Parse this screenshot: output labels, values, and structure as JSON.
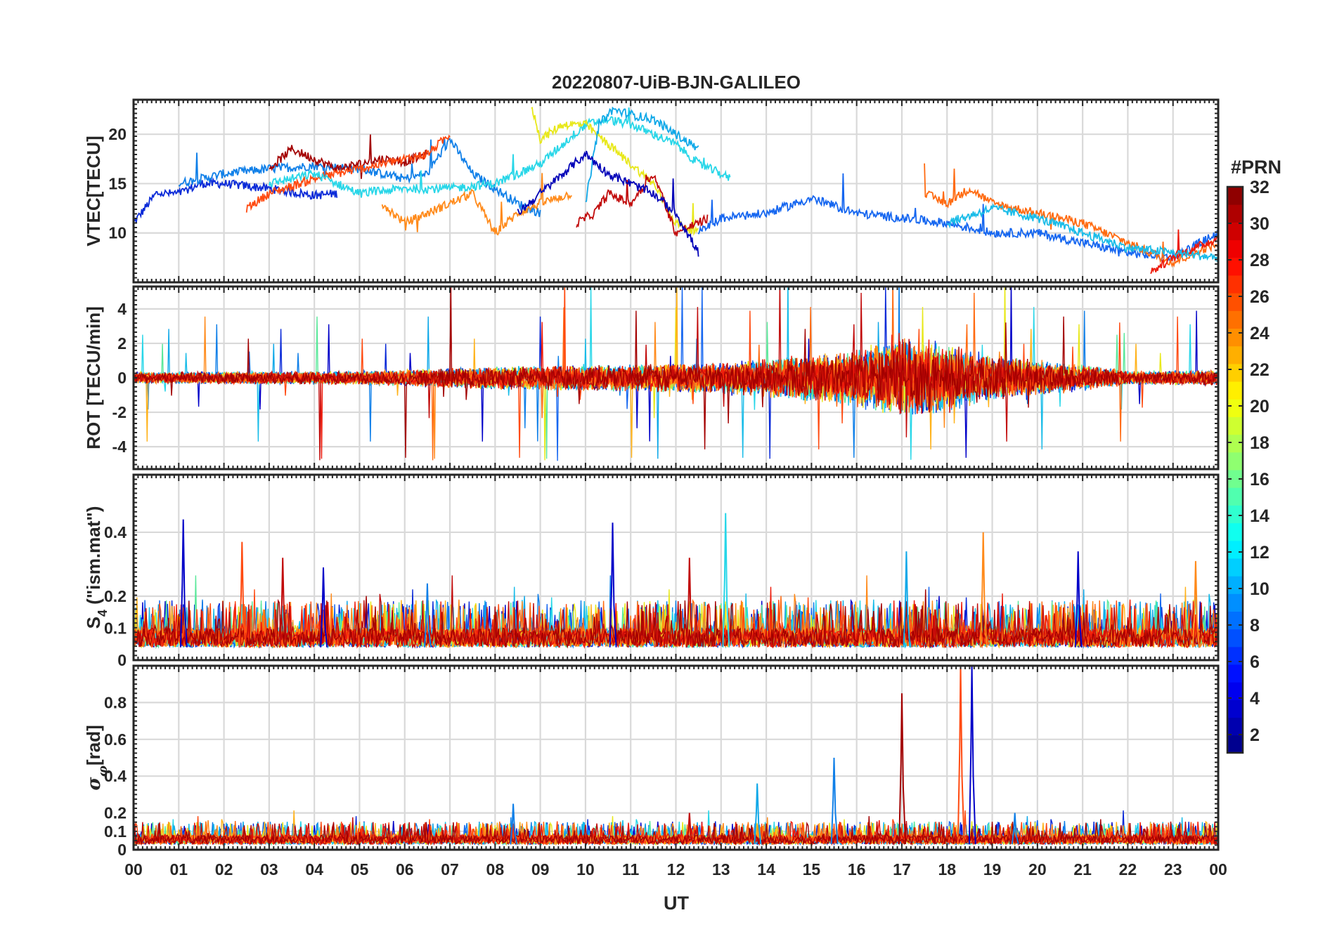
{
  "chart_data": {
    "type": "line",
    "title": "20220807-UiB-BJN-GALILEO",
    "xlabel": "UT",
    "x_ticks": [
      "00",
      "01",
      "02",
      "03",
      "04",
      "05",
      "06",
      "07",
      "08",
      "09",
      "10",
      "11",
      "12",
      "13",
      "14",
      "15",
      "16",
      "17",
      "18",
      "19",
      "20",
      "21",
      "22",
      "23",
      "00"
    ],
    "xlim_hours": [
      0,
      24
    ],
    "grid": true,
    "panels": [
      {
        "id": "vtec",
        "ylabel": "VTEC[TECU]",
        "ylim": [
          5,
          23.5
        ],
        "yticks": [
          {
            "v": 10,
            "label": "10"
          },
          {
            "v": 15,
            "label": "15"
          },
          {
            "v": 20,
            "label": "20"
          }
        ],
        "series": [
          {
            "prn": 5,
            "color": "#0a2ad8",
            "x": [
              0,
              0.5,
              1,
              1.5,
              2,
              3,
              4,
              4.5
            ],
            "y": [
              11,
              14,
              14,
              15,
              15,
              14.5,
              13.8,
              14
            ]
          },
          {
            "prn": 8,
            "color": "#0f7fe8",
            "x": [
              1,
              2,
              3,
              4,
              5,
              6,
              6.5,
              7,
              7.5,
              8,
              8.5,
              9
            ],
            "y": [
              15,
              16,
              16.5,
              16.8,
              16.5,
              15.5,
              16,
              19.5,
              16,
              14.5,
              13,
              12
            ]
          },
          {
            "prn": 31,
            "color": "#a30000",
            "x": [
              3,
              3.5,
              4,
              4.5,
              5,
              5.5,
              6,
              6.5
            ],
            "y": [
              16.5,
              18.5,
              17.5,
              16.5,
              17,
              17.5,
              17.2,
              18
            ]
          },
          {
            "prn": 26,
            "color": "#ff4a10",
            "x": [
              2.5,
              3,
              4,
              5,
              6,
              6.5,
              7
            ],
            "y": [
              12.5,
              14,
              15.5,
              16.5,
              17.5,
              18,
              20
            ]
          },
          {
            "prn": 24,
            "color": "#ff8a1a",
            "x": [
              5.5,
              6,
              6.5,
              7,
              7.5,
              8,
              8.5,
              9,
              9.7
            ],
            "y": [
              13,
              11,
              12,
              13,
              14,
              10,
              12,
              13,
              14
            ]
          },
          {
            "prn": 13,
            "color": "#27d6e8",
            "x": [
              3,
              4,
              5,
              6,
              7,
              8,
              9,
              10,
              10.5,
              11,
              11.5,
              12,
              12.5,
              13,
              13.2
            ],
            "y": [
              15,
              16,
              14,
              14.5,
              14.5,
              15,
              17,
              21,
              21.5,
              21,
              20,
              19,
              17,
              16,
              15.5
            ]
          },
          {
            "prn": 20,
            "color": "#e8e81a",
            "x": [
              8.8,
              9,
              9.5,
              10,
              10.5,
              11,
              11.5,
              12,
              12.5
            ],
            "y": [
              23,
              19.5,
              21,
              21,
              19,
              17,
              15,
              11,
              10
            ]
          },
          {
            "prn": 11,
            "color": "#0fa8e8",
            "x": [
              10,
              10.3,
              10.6,
              11,
              11.5,
              12,
              12.5
            ],
            "y": [
              13,
              21,
              22.5,
              22,
              21.5,
              20,
              18.5
            ]
          },
          {
            "prn": 30,
            "color": "#c10a0a",
            "x": [
              9.8,
              10.2,
              10.5,
              11,
              11.5,
              12,
              12.5,
              12.7
            ],
            "y": [
              11,
              12,
              14,
              13,
              16,
              10,
              11,
              11.5
            ]
          },
          {
            "prn": 3,
            "color": "#0000b8",
            "x": [
              8.5,
              9,
              9.5,
              10,
              10.5,
              11,
              11.5,
              12,
              12.5
            ],
            "y": [
              12,
              14,
              16,
              18,
              16,
              15,
              14,
              12,
              8
            ]
          },
          {
            "prn": 9,
            "color": "#1566f0",
            "x": [
              12.5,
              13,
              14,
              15,
              16,
              17,
              18,
              19,
              20,
              21,
              22,
              23,
              24
            ],
            "y": [
              10,
              11.5,
              12,
              13.5,
              12,
              11.5,
              11,
              10,
              10,
              9,
              8,
              7.5,
              10
            ]
          },
          {
            "prn": 25,
            "color": "#ff6a10",
            "x": [
              17.5,
              18,
              18.5,
              19,
              20,
              21,
              22,
              23,
              24
            ],
            "y": [
              14,
              13,
              14.5,
              13,
              12,
              11,
              9,
              7,
              9
            ]
          },
          {
            "prn": 28,
            "color": "#ee1a0a",
            "x": [
              22.5,
              23,
              23.5,
              24
            ],
            "y": [
              6,
              7.5,
              8.5,
              9.5
            ]
          },
          {
            "prn": 14,
            "color": "#19bce8",
            "x": [
              18,
              19,
              20,
              21,
              22,
              23,
              24
            ],
            "y": [
              11,
              12.5,
              11.5,
              10,
              8.5,
              8,
              7.5
            ]
          }
        ]
      },
      {
        "id": "rot",
        "ylabel": "ROT [TECU/min]",
        "ylim": [
          -5.3,
          5.3
        ],
        "yticks": [
          {
            "v": -4,
            "label": "-4"
          },
          {
            "v": -2,
            "label": "-2"
          },
          {
            "v": 0,
            "label": "0"
          },
          {
            "v": 2,
            "label": "2"
          },
          {
            "v": 4,
            "label": "4"
          }
        ],
        "amplitude_envelope_x": [
          0,
          5,
          8,
          11,
          13,
          15,
          16,
          17,
          18,
          19,
          21,
          22,
          24
        ],
        "amplitude_envelope_y": [
          0.3,
          0.35,
          0.6,
          0.7,
          0.8,
          1.2,
          1.5,
          2.0,
          1.8,
          1.1,
          0.7,
          0.35,
          0.4
        ]
      },
      {
        "id": "s4",
        "ylabel": "S",
        "ylabel_sub": "4",
        "ylabel_rest": " (\"ism.mat\")",
        "ylim": [
          0,
          0.58
        ],
        "yticks": [
          {
            "v": 0,
            "label": "0"
          },
          {
            "v": 0.1,
            "label": "0.1"
          },
          {
            "v": 0.2,
            "label": "0.2"
          },
          {
            "v": 0.4,
            "label": "0.4"
          }
        ],
        "peaks": [
          {
            "x": 1.1,
            "y": 0.44,
            "color": "#0000c8"
          },
          {
            "x": 2.4,
            "y": 0.37,
            "color": "#ff4a10"
          },
          {
            "x": 3.3,
            "y": 0.32,
            "color": "#c10a0a"
          },
          {
            "x": 4.2,
            "y": 0.29,
            "color": "#0000c8"
          },
          {
            "x": 6.5,
            "y": 0.24,
            "color": "#0f7fe8"
          },
          {
            "x": 10.6,
            "y": 0.43,
            "color": "#0000c8"
          },
          {
            "x": 12.3,
            "y": 0.32,
            "color": "#c10a0a"
          },
          {
            "x": 13.1,
            "y": 0.46,
            "color": "#27d6e8"
          },
          {
            "x": 17.1,
            "y": 0.34,
            "color": "#0fa8e8"
          },
          {
            "x": 18.8,
            "y": 0.4,
            "color": "#ff8a1a"
          },
          {
            "x": 20.9,
            "y": 0.34,
            "color": "#0000c8"
          },
          {
            "x": 23.5,
            "y": 0.31,
            "color": "#ff8a1a"
          }
        ]
      },
      {
        "id": "sigma",
        "ylabel": "σ",
        "ylabel_sub": "φ",
        "ylabel_rest": "[rad]",
        "ylim": [
          0,
          1
        ],
        "yticks": [
          {
            "v": 0,
            "label": "0"
          },
          {
            "v": 0.1,
            "label": "0.1"
          },
          {
            "v": 0.2,
            "label": "0.2"
          },
          {
            "v": 0.4,
            "label": "0.4"
          },
          {
            "v": 0.6,
            "label": "0.6"
          },
          {
            "v": 0.8,
            "label": "0.8"
          }
        ],
        "peaks": [
          {
            "x": 8.4,
            "y": 0.25,
            "color": "#0f7fe8"
          },
          {
            "x": 12.3,
            "y": 0.2,
            "color": "#c10a0a"
          },
          {
            "x": 13.8,
            "y": 0.36,
            "color": "#0fa8e8"
          },
          {
            "x": 15.5,
            "y": 0.5,
            "color": "#0f7fe8"
          },
          {
            "x": 17.0,
            "y": 0.85,
            "color": "#a30000"
          },
          {
            "x": 18.3,
            "y": 1.0,
            "color": "#ff4a10"
          },
          {
            "x": 18.55,
            "y": 1.0,
            "color": "#0000c8"
          },
          {
            "x": 19.5,
            "y": 0.2,
            "color": "#0f7fe8"
          }
        ]
      }
    ],
    "colorbar": {
      "title": "#PRN",
      "clim": [
        1,
        32
      ],
      "ticks": [
        "2",
        "4",
        "6",
        "8",
        "10",
        "12",
        "14",
        "16",
        "18",
        "20",
        "22",
        "24",
        "26",
        "28",
        "30",
        "32"
      ],
      "colormap": "jet"
    }
  }
}
